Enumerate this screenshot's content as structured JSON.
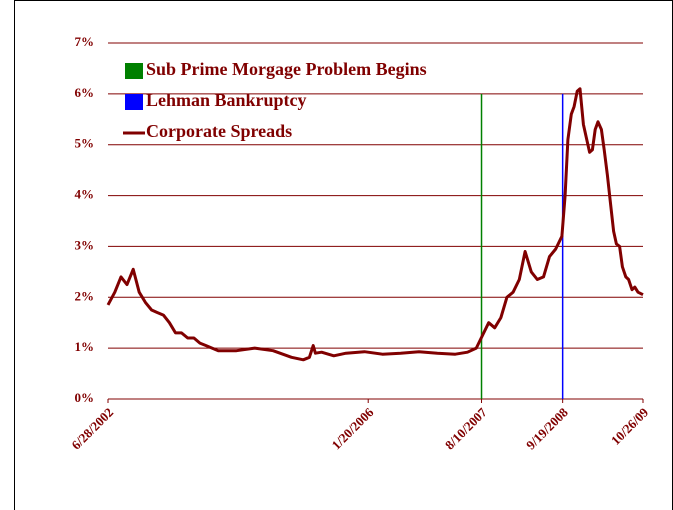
{
  "chart_data": {
    "type": "line",
    "xlim": [
      "2002-06-28",
      "2009-10-26"
    ],
    "xticks": [
      {
        "value": "2002-06-28",
        "label": "6/28/2002"
      },
      {
        "value": "2006-01-20",
        "label": "1/20/2006"
      },
      {
        "value": "2007-08-10",
        "label": "8/10/2007"
      },
      {
        "value": "2008-09-19",
        "label": "9/19/2008"
      },
      {
        "value": "2009-10-26",
        "label": "10/26/09"
      }
    ],
    "ylim": [
      0,
      7
    ],
    "yticks": [
      {
        "value": 0,
        "label": "0%"
      },
      {
        "value": 1,
        "label": "1%"
      },
      {
        "value": 2,
        "label": "2%"
      },
      {
        "value": 3,
        "label": "3%"
      },
      {
        "value": 4,
        "label": "4%"
      },
      {
        "value": 5,
        "label": "5%"
      },
      {
        "value": 6,
        "label": "6%"
      },
      {
        "value": 7,
        "label": "7%"
      }
    ],
    "grid": true,
    "grid_color": "#800000",
    "legend": "top-left",
    "series": [
      {
        "name": "Sub Prime Morgage Problem Begins",
        "color": "#008000",
        "style": "vline",
        "x": [
          "2007-08-10",
          "2007-08-10"
        ],
        "values": [
          0,
          6
        ]
      },
      {
        "name": "Lehman Bankruptcy",
        "color": "#0000ff",
        "style": "vline",
        "x": [
          "2008-09-19",
          "2008-09-19"
        ],
        "values": [
          0,
          6
        ]
      },
      {
        "name": "Corporate Spreads",
        "color": "#800000",
        "style": "line",
        "x": [
          "2002-06-28",
          "2002-08-01",
          "2002-09-01",
          "2002-10-01",
          "2002-11-01",
          "2002-12-01",
          "2003-01-01",
          "2003-02-01",
          "2003-03-01",
          "2003-04-01",
          "2003-05-01",
          "2003-06-01",
          "2003-07-01",
          "2003-08-01",
          "2003-09-01",
          "2003-10-01",
          "2003-11-01",
          "2004-01-01",
          "2004-04-01",
          "2004-07-01",
          "2004-10-01",
          "2005-01-01",
          "2005-03-01",
          "2005-04-01",
          "2005-04-20",
          "2005-05-01",
          "2005-06-01",
          "2005-08-01",
          "2005-10-01",
          "2006-01-01",
          "2006-04-01",
          "2006-07-01",
          "2006-10-01",
          "2007-01-01",
          "2007-04-01",
          "2007-06-01",
          "2007-07-15",
          "2007-08-15",
          "2007-09-15",
          "2007-10-15",
          "2007-11-15",
          "2007-12-15",
          "2008-01-15",
          "2008-02-15",
          "2008-03-15",
          "2008-04-15",
          "2008-05-15",
          "2008-06-15",
          "2008-07-15",
          "2008-08-15",
          "2008-09-15",
          "2008-10-01",
          "2008-10-15",
          "2008-11-01",
          "2008-11-15",
          "2008-12-01",
          "2008-12-15",
          "2009-01-01",
          "2009-01-15",
          "2009-02-01",
          "2009-02-15",
          "2009-03-01",
          "2009-03-15",
          "2009-04-01",
          "2009-04-15",
          "2009-05-01",
          "2009-05-15",
          "2009-06-01",
          "2009-06-15",
          "2009-07-01",
          "2009-07-15",
          "2009-08-01",
          "2009-08-15",
          "2009-09-01",
          "2009-09-15",
          "2009-10-01",
          "2009-10-26"
        ],
        "values": [
          1.85,
          2.1,
          2.4,
          2.25,
          2.55,
          2.1,
          1.9,
          1.75,
          1.7,
          1.65,
          1.5,
          1.3,
          1.3,
          1.2,
          1.2,
          1.1,
          1.05,
          0.95,
          0.95,
          1.0,
          0.95,
          0.82,
          0.77,
          0.82,
          1.05,
          0.9,
          0.92,
          0.85,
          0.9,
          0.93,
          0.88,
          0.9,
          0.93,
          0.9,
          0.88,
          0.92,
          1.0,
          1.25,
          1.5,
          1.4,
          1.6,
          2.0,
          2.1,
          2.35,
          2.9,
          2.5,
          2.35,
          2.4,
          2.8,
          2.95,
          3.2,
          4.0,
          5.1,
          5.6,
          5.75,
          6.05,
          6.1,
          5.4,
          5.15,
          4.85,
          4.9,
          5.3,
          5.45,
          5.3,
          4.9,
          4.4,
          3.9,
          3.3,
          3.05,
          3.0,
          2.6,
          2.4,
          2.35,
          2.15,
          2.2,
          2.1,
          2.05
        ]
      }
    ]
  }
}
